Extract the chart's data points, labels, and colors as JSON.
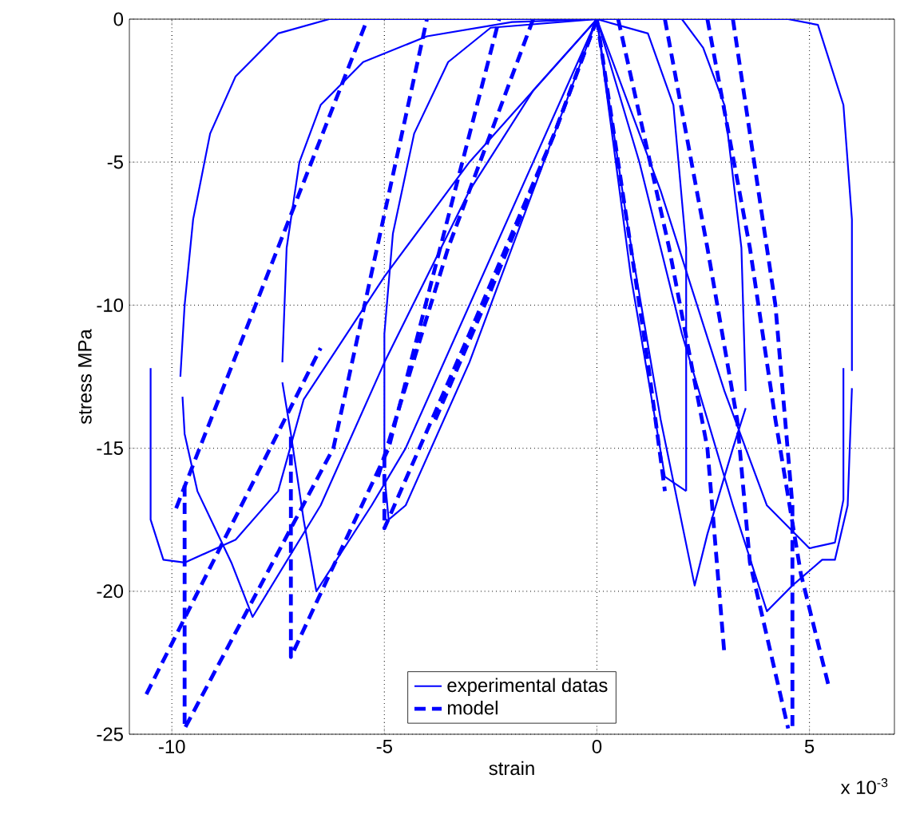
{
  "chart_data": {
    "type": "line",
    "xlabel": "strain",
    "ylabel": "stress MPa",
    "annotations": [
      "x 10$^{-3}$"
    ],
    "xlim": [
      -11,
      7
    ],
    "ylim": [
      -25,
      0
    ],
    "xticks": [
      -10,
      -5,
      0,
      5
    ],
    "yticks": [
      -25,
      -20,
      -15,
      -10,
      -5,
      0
    ],
    "grid": true,
    "legend": "bottom",
    "series": [
      {
        "name": "experimental datas",
        "color": "#0000ff",
        "line_style": "solid",
        "x": [
          -10.5,
          -10.5,
          -10.2,
          -9.7,
          -8.5,
          -7.5,
          -6.9,
          -5,
          -3,
          0
        ],
        "values": [
          -12.2,
          -17.5,
          -18.9,
          -19,
          -18.2,
          -16.5,
          -13.3,
          -9,
          -5,
          0
        ]
      },
      {
        "color": "#0000ff",
        "line_style": "solid",
        "x": [
          -9.8,
          -9.7,
          -9.5,
          -9.1,
          -8.5,
          -7.5,
          -6.3,
          0,
          4.5,
          5.2,
          5.8,
          6,
          6
        ],
        "values": [
          -12.5,
          -10,
          -7,
          -4,
          -2,
          -0.5,
          0,
          0,
          0,
          -0.2,
          -3,
          -7,
          -12.3
        ]
      },
      {
        "color": "#0000ff",
        "line_style": "solid",
        "x": [
          -9.75,
          -9.7,
          -9.4,
          -8.6,
          -8.1,
          -6.5,
          -5,
          -3,
          -1.5,
          0
        ],
        "values": [
          -13.2,
          -14.5,
          -16.5,
          -19,
          -20.9,
          -17,
          -12,
          -6,
          -2.5,
          0
        ]
      },
      {
        "color": "#0000ff",
        "line_style": "solid",
        "x": [
          -7.4,
          -7.3,
          -7,
          -6.5,
          -5.5,
          -4,
          -2,
          0,
          2,
          2.5,
          3,
          3.4,
          3.5
        ],
        "values": [
          -12,
          -8,
          -5,
          -3,
          -1.5,
          -0.6,
          -0.1,
          0,
          0,
          -1,
          -3,
          -8,
          -13
        ]
      },
      {
        "color": "#0000ff",
        "line_style": "solid",
        "x": [
          -7.4,
          -7.2,
          -6.9,
          -6.6,
          -5.3,
          -4.5,
          -3,
          -1.5,
          0
        ],
        "values": [
          -12.7,
          -14.5,
          -17.5,
          -20,
          -17,
          -15,
          -10,
          -5,
          0
        ]
      },
      {
        "color": "#0000ff",
        "line_style": "solid",
        "x": [
          -5,
          -5,
          -4.8,
          -4.3,
          -3.5,
          -2.5,
          0,
          1.2,
          1.8,
          2.1,
          2.1
        ],
        "values": [
          -15.3,
          -11,
          -7.5,
          -4,
          -1.5,
          -0.3,
          0,
          -0.5,
          -3,
          -8,
          -16.5
        ]
      },
      {
        "color": "#0000ff",
        "line_style": "solid",
        "x": [
          -5,
          -4.9,
          -4.5,
          -3,
          -1.5,
          0
        ],
        "values": [
          -15.9,
          -17.5,
          -17,
          -12,
          -6,
          0
        ]
      },
      {
        "color": "#0000ff",
        "line_style": "solid",
        "x": [
          0,
          1,
          2,
          3.2,
          4,
          4.6,
          5.3,
          5.6,
          5.9,
          6
        ],
        "values": [
          0,
          -5,
          -11,
          -17,
          -20.7,
          -19.8,
          -18.9,
          -18.9,
          -17,
          -12.9
        ]
      },
      {
        "color": "#0000ff",
        "line_style": "solid",
        "x": [
          0,
          1.5,
          3,
          4,
          5,
          5.6,
          5.8,
          5.8
        ],
        "values": [
          0,
          -6,
          -13,
          -17,
          -18.5,
          -18.3,
          -16.8,
          -12.2
        ]
      },
      {
        "color": "#0000ff",
        "line_style": "solid",
        "x": [
          0,
          0.7,
          1.5,
          2.3,
          2.6,
          3.2,
          3.5
        ],
        "values": [
          0,
          -7,
          -14,
          -19.8,
          -18,
          -15,
          -13.6
        ]
      },
      {
        "color": "#0000ff",
        "line_style": "solid",
        "x": [
          0,
          0.8,
          1.6,
          2.1
        ],
        "values": [
          0,
          -9,
          -16,
          -16.5
        ]
      },
      {
        "name": "model",
        "color": "#0000ff",
        "line_style": "dashed",
        "x": [
          -9.9,
          -5.4
        ],
        "values": [
          -17.1,
          0
        ]
      },
      {
        "color": "#0000ff",
        "line_style": "dashed",
        "x": [
          -9.7,
          -9.7,
          -6.2,
          -4
        ],
        "values": [
          -16.3,
          -24.8,
          -15,
          0
        ]
      },
      {
        "color": "#0000ff",
        "line_style": "dashed",
        "x": [
          -10.6,
          -6.5
        ],
        "values": [
          -23.6,
          -11.5
        ]
      },
      {
        "color": "#0000ff",
        "line_style": "dashed",
        "x": [
          -7.2,
          -7.2,
          -4.9,
          -2.3
        ],
        "values": [
          -14.6,
          -22.3,
          -15,
          0
        ]
      },
      {
        "color": "#0000ff",
        "line_style": "dashed",
        "x": [
          -5.15,
          -3.5,
          -1.5
        ],
        "values": [
          -16,
          -8,
          0
        ]
      },
      {
        "color": "#0000ff",
        "line_style": "dashed",
        "x": [
          -5,
          -5,
          -3,
          -1,
          0
        ],
        "values": [
          -15.3,
          -17.8,
          -11,
          -4,
          0
        ]
      },
      {
        "color": "#0000ff",
        "line_style": "dashed",
        "x": [
          -3.8,
          -2.5,
          -1,
          0
        ],
        "values": [
          -14,
          -9.5,
          -4,
          0
        ]
      },
      {
        "color": "#0000ff",
        "line_style": "dashed",
        "x": [
          0,
          0.6,
          1.2,
          1.6
        ],
        "values": [
          0,
          -6,
          -12,
          -16.5
        ]
      },
      {
        "color": "#0000ff",
        "line_style": "dashed",
        "x": [
          0.5,
          1.7,
          2.6,
          3
        ],
        "values": [
          0,
          -8,
          -15,
          -22.2
        ]
      },
      {
        "color": "#0000ff",
        "line_style": "dashed",
        "x": [
          1.6,
          2.6,
          3.3,
          3.6,
          4.5
        ],
        "values": [
          0,
          -8,
          -14,
          -19,
          -24.8
        ]
      },
      {
        "color": "#0000ff",
        "line_style": "dashed",
        "x": [
          2.6,
          3.6,
          4.2,
          4.8,
          5.45
        ],
        "values": [
          0,
          -8,
          -14,
          -19.4,
          -23.3
        ]
      },
      {
        "color": "#0000ff",
        "line_style": "dashed",
        "x": [
          3.2,
          4.2,
          4.6,
          4.6
        ],
        "values": [
          0,
          -10,
          -17,
          -24.8
        ]
      }
    ]
  }
}
